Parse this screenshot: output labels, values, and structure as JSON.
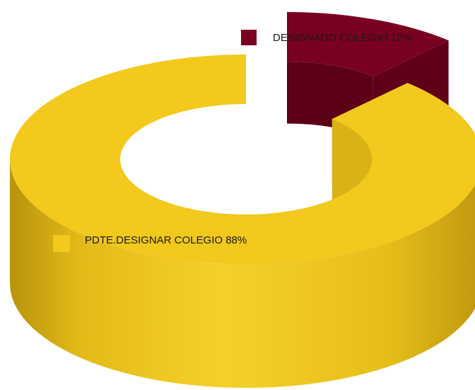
{
  "chart_data": {
    "type": "pie",
    "variant": "3d-donut",
    "title": "",
    "slices": [
      {
        "label": "DESIGNADO COLEGIO 12%",
        "value": 12,
        "color": "#7a0020"
      },
      {
        "label": "PDTE.DESIGNAR COLEGIO 88%",
        "value": 88,
        "color": "#f2c91c"
      }
    ],
    "legend": "inline-labels",
    "exploded_slice": "DESIGNADO COLEGIO 12%"
  }
}
